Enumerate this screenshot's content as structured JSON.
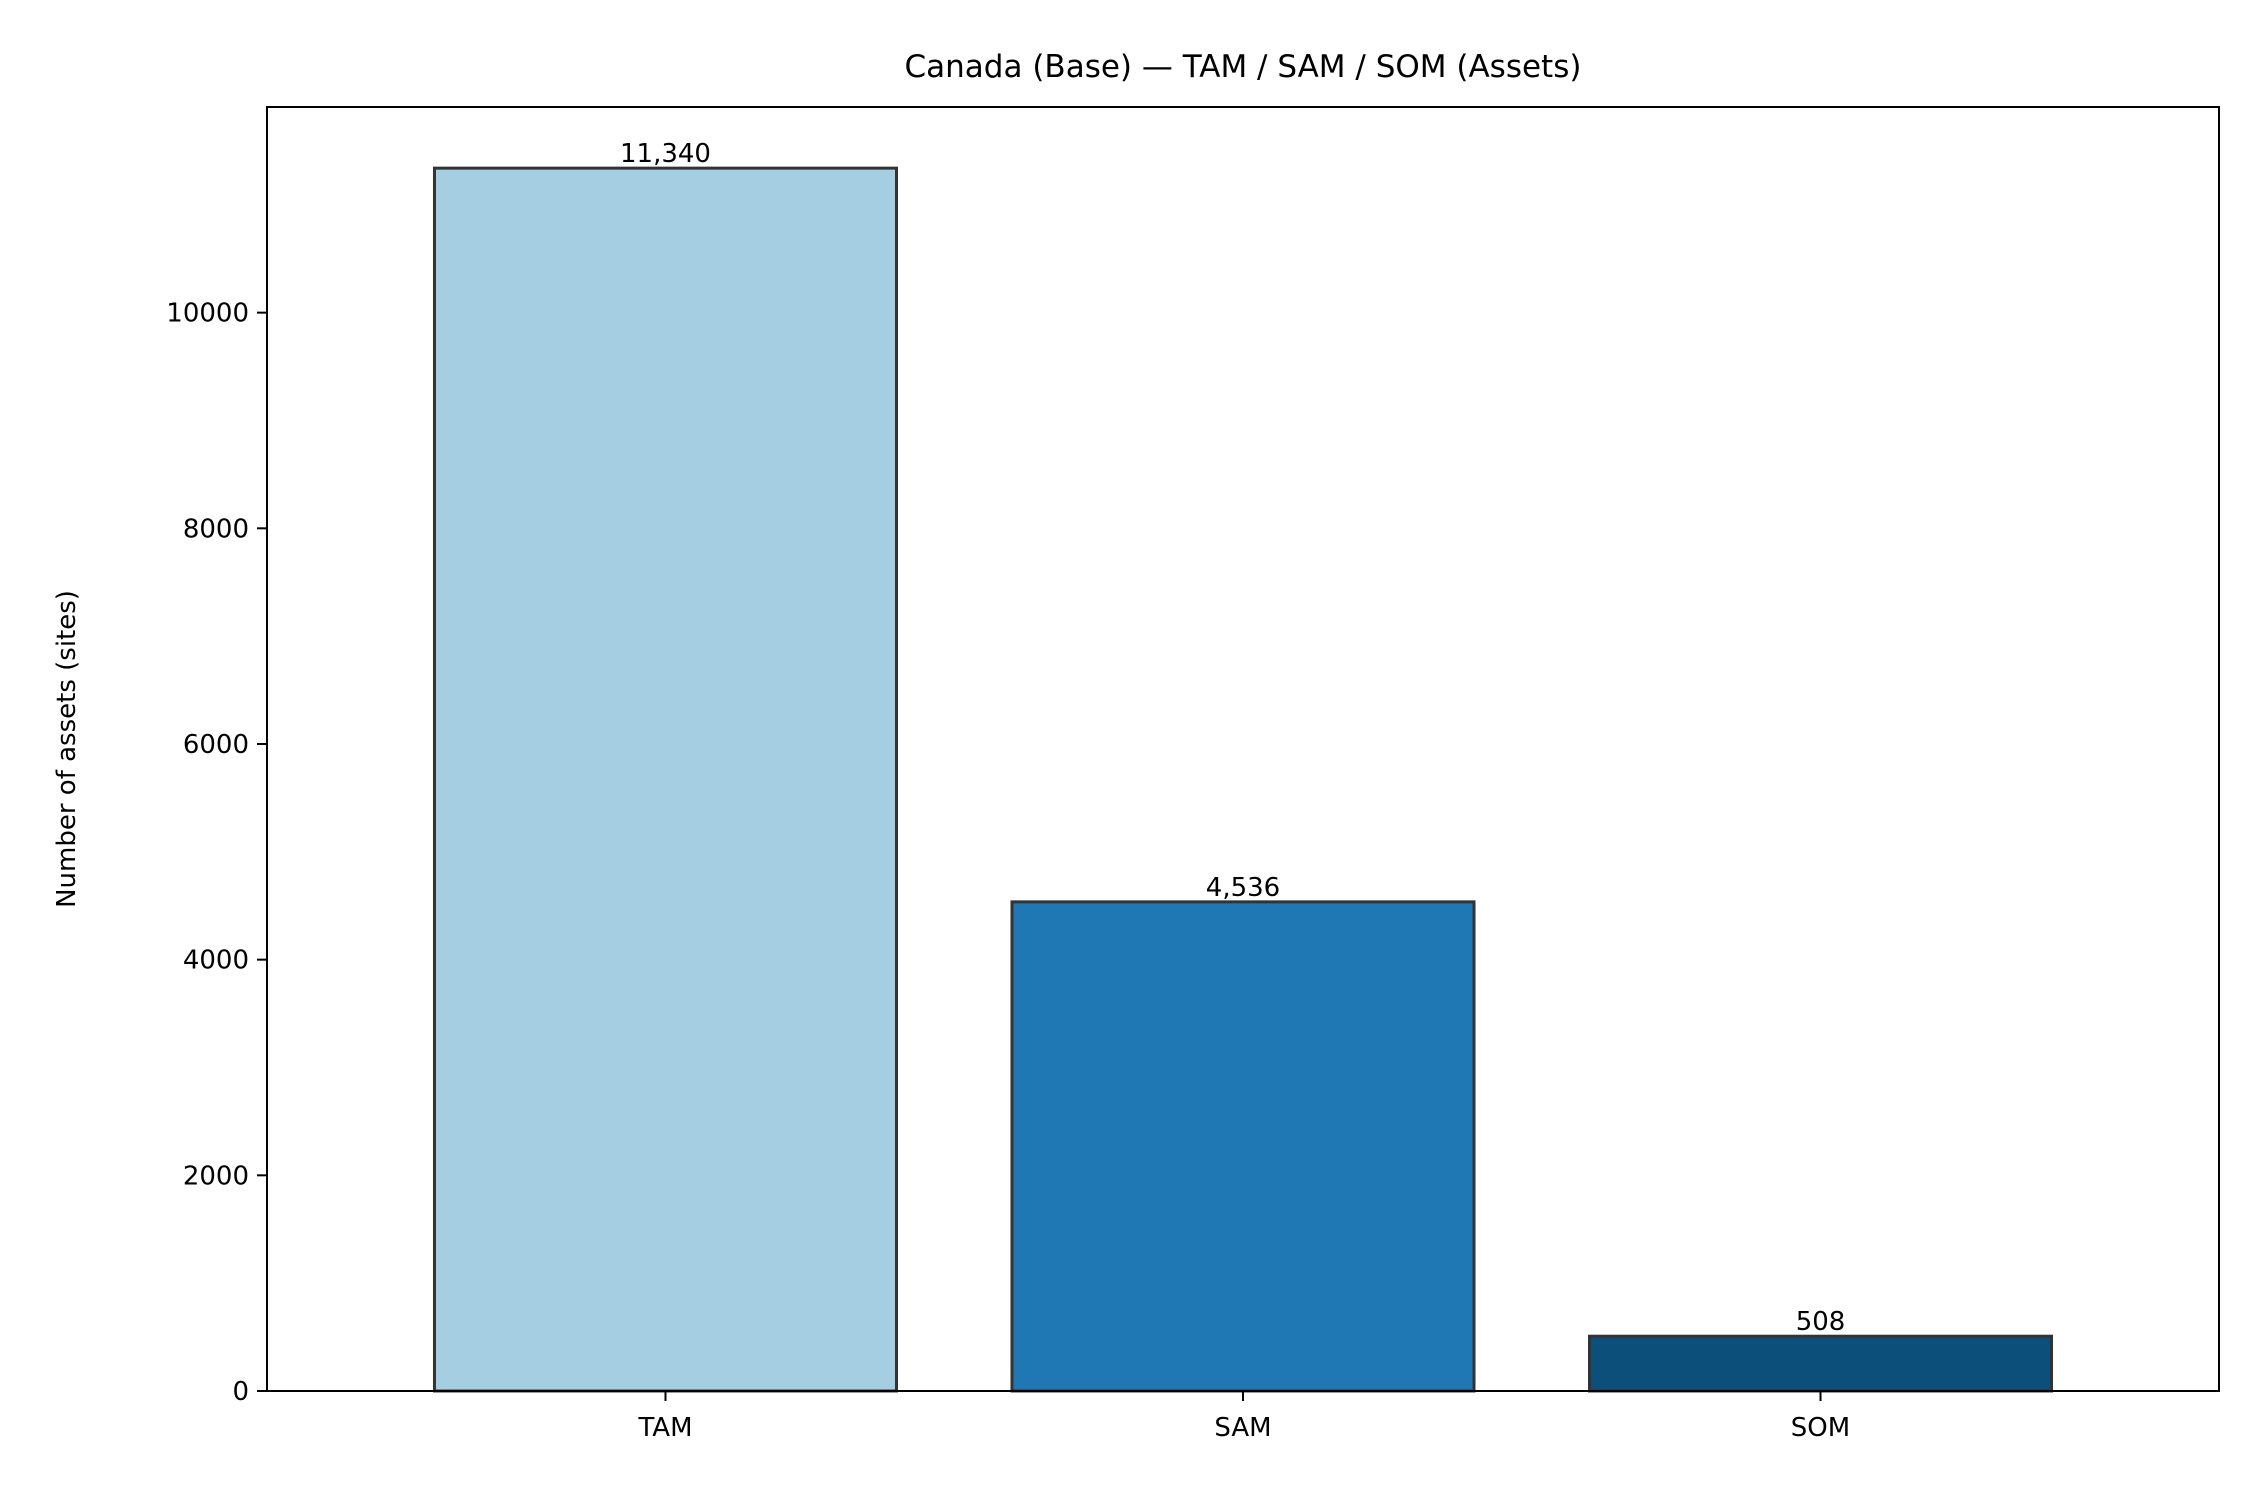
{
  "chart_data": {
    "type": "bar",
    "title": "Canada (Base) — TAM / SAM / SOM (Assets)",
    "xlabel": "",
    "ylabel": "Number of assets (sites)",
    "categories": [
      "TAM",
      "SAM",
      "SOM"
    ],
    "values": [
      11340,
      4536,
      508
    ],
    "value_labels": [
      "11,340",
      "4,536",
      "508"
    ],
    "colors": [
      "#a6cee3",
      "#1f78b4",
      "#0d4f7b"
    ],
    "edge_color": "#333333",
    "ylim": [
      0,
      11907
    ],
    "yticks": [
      0,
      2000,
      4000,
      6000,
      8000,
      10000
    ],
    "grid": false,
    "legend": "none"
  }
}
